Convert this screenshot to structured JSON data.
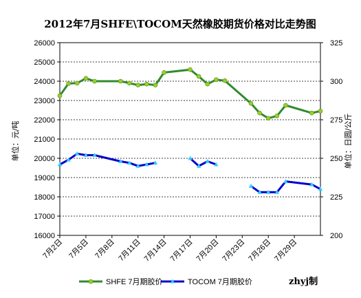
{
  "colors": {
    "shfe_line": "#2e8b2e",
    "shfe_marker": "#9acd32",
    "tocom_line": "#0000cc",
    "tocom_marker": "#33ccff",
    "grid": "#000000",
    "background": "#ffffff"
  },
  "chart_data": {
    "type": "line",
    "title": "2012年7月SHFE\\TOCOM天然橡胶期货价格对比走势图",
    "ylabel": "单位：元/吨",
    "y2label": "单位：日圆/公斤",
    "ylim": [
      16000,
      26000
    ],
    "ytick_step": 1000,
    "y2lim": [
      200,
      325
    ],
    "y2tick_step": 25,
    "x_tick_labels": [
      "7月2日",
      "7月5日",
      "7月8日",
      "7月11日",
      "7月14日",
      "7月17日",
      "7月20日",
      "7月23日",
      "7月26日",
      "7月29日"
    ],
    "x_tick_days": [
      2,
      5,
      8,
      11,
      14,
      17,
      20,
      23,
      26,
      29
    ],
    "xlim": [
      2,
      32
    ],
    "grid": "horizontal dashed",
    "legend_position": "bottom",
    "credit": "zhyj制",
    "series": [
      {
        "name": "SHFE 7月期胶价",
        "axis": "left",
        "points": [
          [
            2,
            23250
          ],
          [
            3,
            23880
          ],
          [
            4,
            23900
          ],
          [
            5,
            24150
          ],
          [
            6,
            24000
          ],
          [
            9,
            24000
          ],
          [
            10,
            23900
          ],
          [
            11,
            23800
          ],
          [
            12,
            23850
          ],
          [
            13,
            23800
          ],
          [
            14,
            24450
          ],
          [
            17,
            24600
          ],
          [
            18,
            24250
          ],
          [
            19,
            23850
          ],
          [
            20,
            24080
          ],
          [
            21,
            24030
          ],
          [
            24,
            22850
          ],
          [
            25,
            22350
          ],
          [
            26,
            22080
          ],
          [
            27,
            22200
          ],
          [
            28,
            22750
          ],
          [
            31,
            22350
          ],
          [
            32,
            22450
          ]
        ]
      },
      {
        "name": "TOCOM 7月期胶价",
        "axis": "right",
        "points": [
          [
            2,
            246
          ],
          [
            3,
            249
          ],
          [
            4,
            253
          ],
          [
            5,
            252
          ],
          [
            6,
            252
          ],
          [
            9,
            248
          ],
          [
            10,
            247
          ],
          [
            11,
            245
          ],
          [
            12,
            246
          ],
          [
            13,
            247
          ],
          [
            17,
            250
          ],
          [
            18,
            245
          ],
          [
            19,
            248
          ],
          [
            20,
            246
          ],
          [
            24,
            232
          ],
          [
            25,
            228
          ],
          [
            26,
            228
          ],
          [
            27,
            228
          ],
          [
            28,
            235
          ],
          [
            31,
            233
          ],
          [
            32,
            230
          ]
        ]
      }
    ]
  }
}
